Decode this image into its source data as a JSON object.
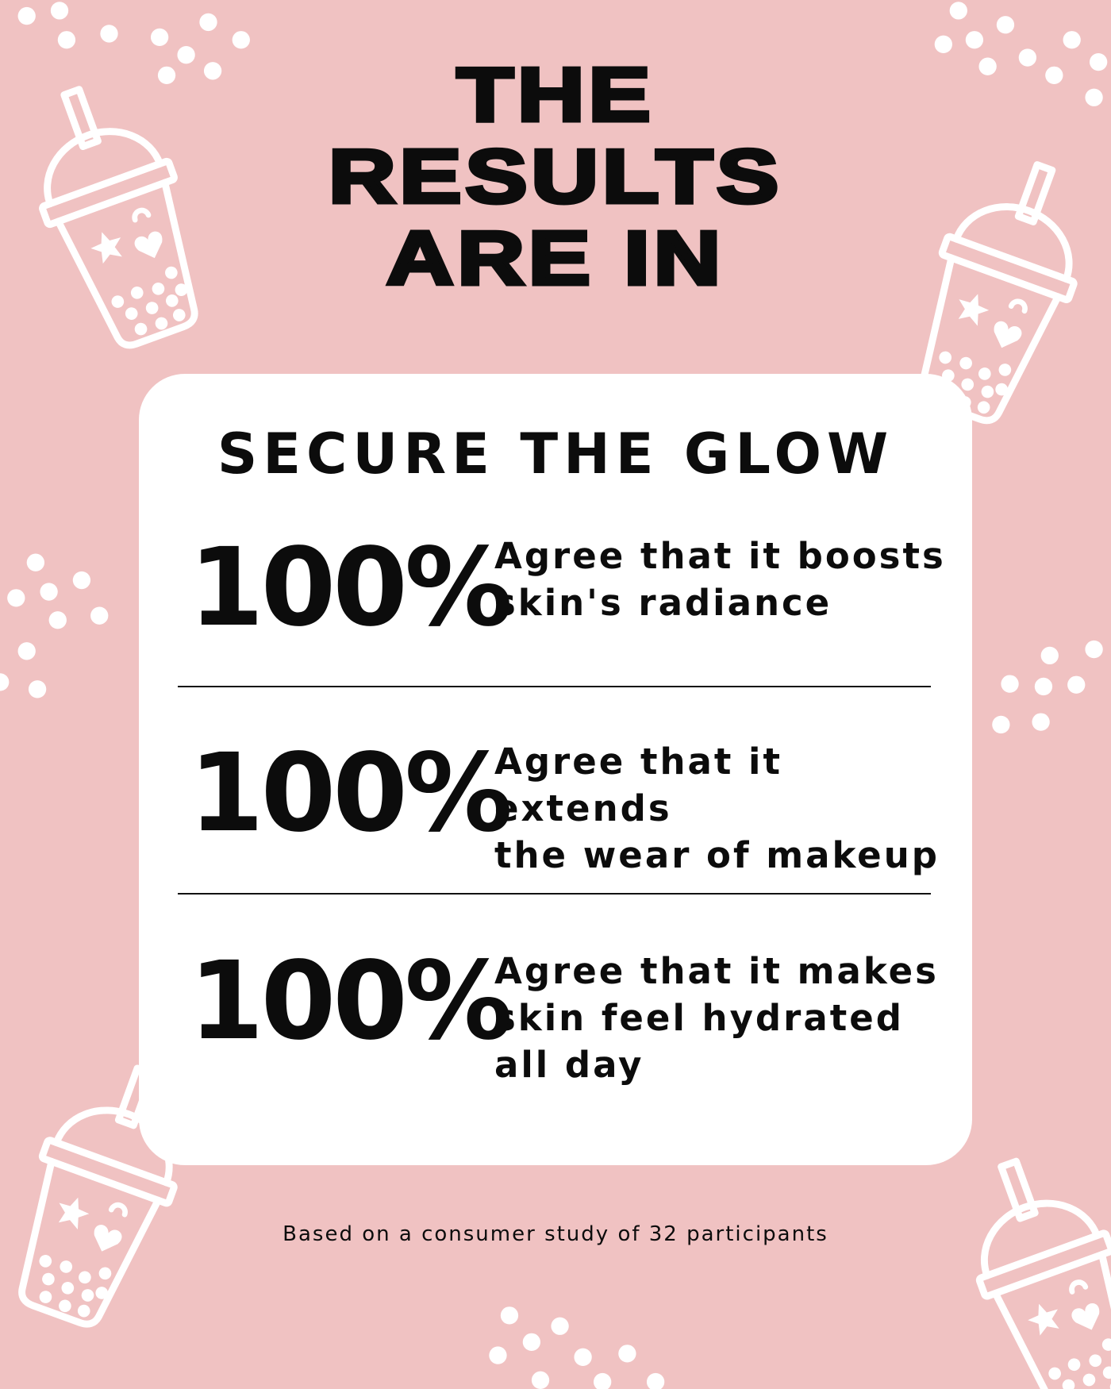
{
  "headline": [
    "THE",
    "RESULTS",
    "ARE IN"
  ],
  "card": {
    "title": "SECURE THE GLOW",
    "stats": [
      {
        "value": "100%",
        "description": [
          "Agree that it boosts",
          "skin's radiance"
        ]
      },
      {
        "value": "100%",
        "description": [
          "Agree that it extends",
          "the wear of makeup"
        ]
      },
      {
        "value": "100%",
        "description": [
          "Agree that it makes",
          "skin feel hydrated",
          "all day"
        ]
      }
    ]
  },
  "footer": "Based on a consumer study of 32 participants",
  "colors": {
    "background": "#f0c2c2",
    "card": "#ffffff",
    "text": "#0c0c0c",
    "decoration": "#ffffff"
  },
  "decorations": [
    "bubble-tea-cup-icon",
    "boba-dots"
  ]
}
